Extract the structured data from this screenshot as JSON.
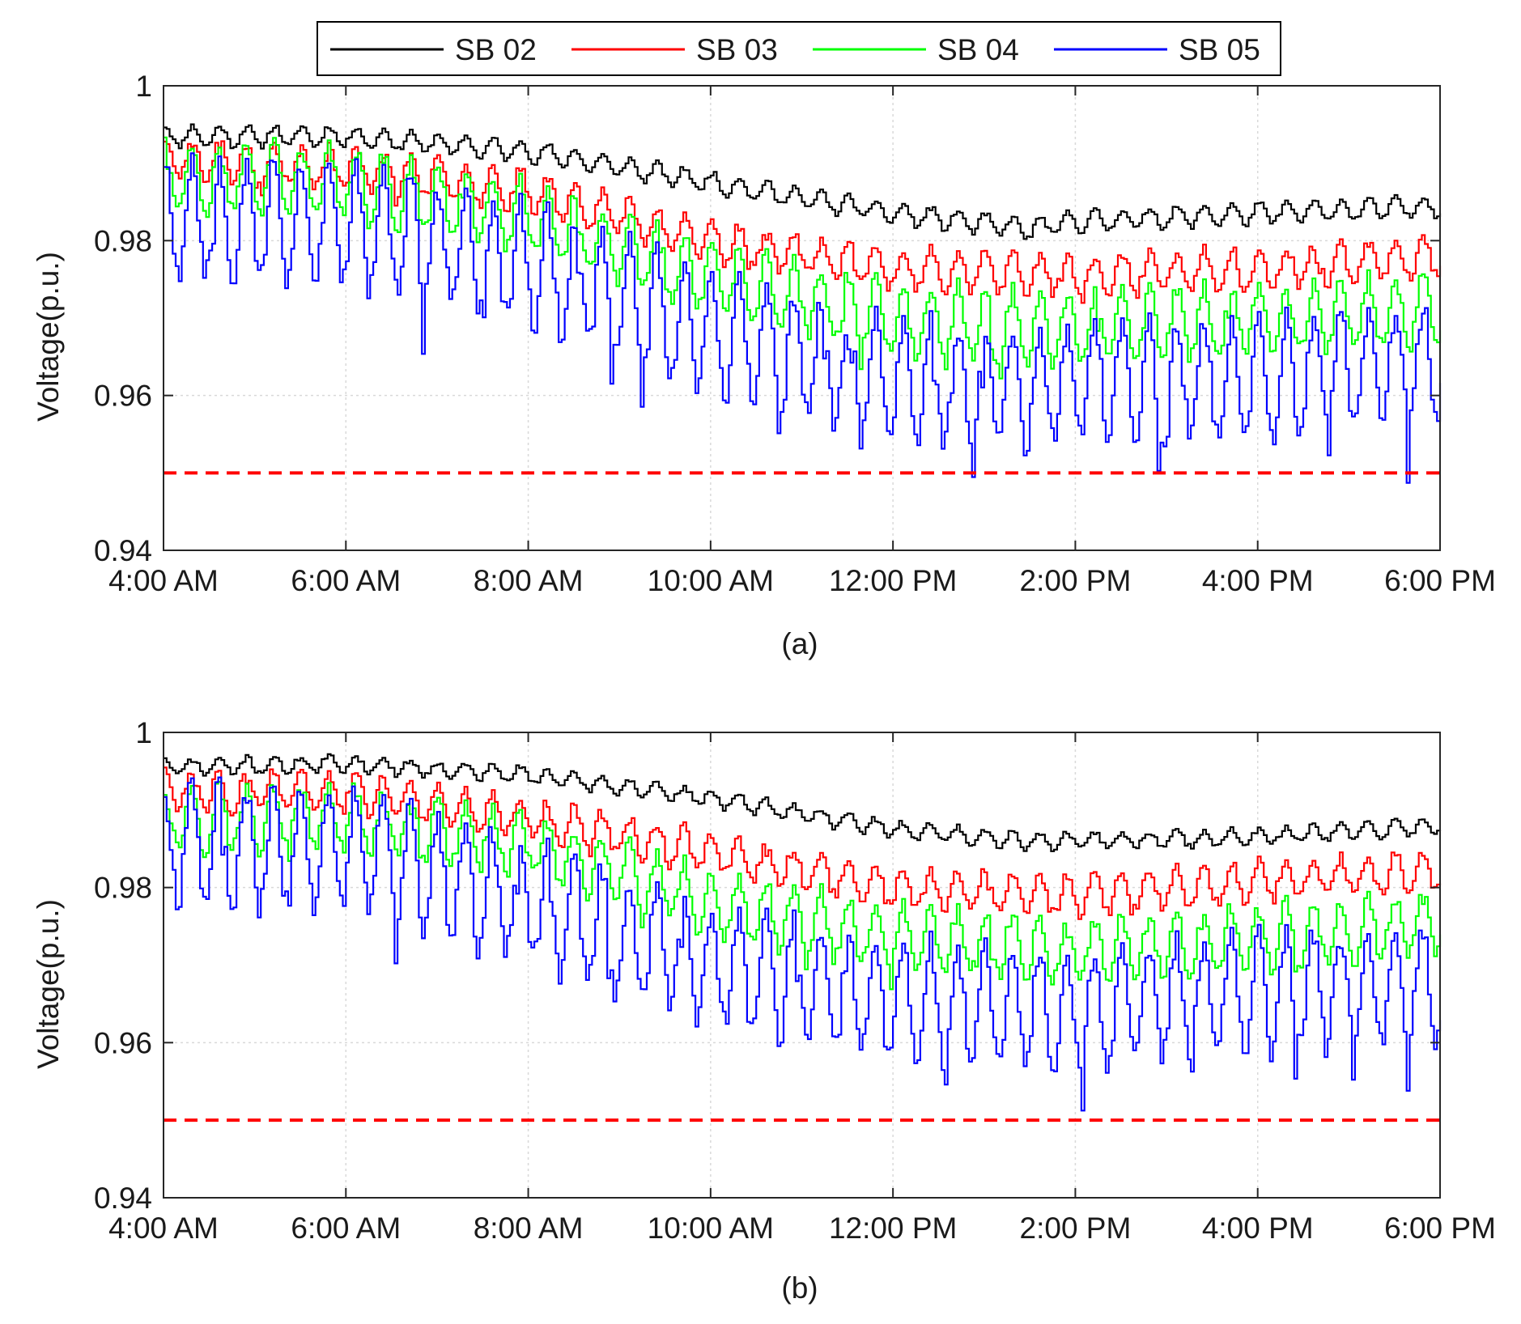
{
  "legend": {
    "entries": [
      {
        "label": "SB 02",
        "color": "#000000"
      },
      {
        "label": "SB 03",
        "color": "#ff0000"
      },
      {
        "label": "SB 04",
        "color": "#00ff00"
      },
      {
        "label": "SB 05",
        "color": "#0000ff"
      }
    ]
  },
  "chart_data": [
    {
      "type": "line",
      "caption": "(a)",
      "ylabel": "Voltage(p.u.)",
      "xlabel": "",
      "x_range_hours": [
        4,
        18
      ],
      "ylim": [
        0.94,
        1.0
      ],
      "x_ticks": [
        {
          "hour": 4,
          "label": "4:00 AM"
        },
        {
          "hour": 6,
          "label": "6:00 AM"
        },
        {
          "hour": 8,
          "label": "8:00 AM"
        },
        {
          "hour": 10,
          "label": "10:00 AM"
        },
        {
          "hour": 12,
          "label": "12:00 PM"
        },
        {
          "hour": 14,
          "label": "2:00 PM"
        },
        {
          "hour": 16,
          "label": "4:00 PM"
        },
        {
          "hour": 18,
          "label": "6:00 PM"
        }
      ],
      "y_ticks": [
        {
          "value": 0.94,
          "label": "0.94"
        },
        {
          "value": 0.96,
          "label": "0.96"
        },
        {
          "value": 0.98,
          "label": "0.98"
        },
        {
          "value": 1.0,
          "label": "1"
        }
      ],
      "grid": true,
      "reference_line": {
        "value": 0.95,
        "color": "#ff0000",
        "style": "dashed"
      },
      "series": [
        {
          "name": "SB 02",
          "color": "#000000",
          "trend": [
            [
              4,
              0.9935
            ],
            [
              6,
              0.9935
            ],
            [
              8,
              0.9915
            ],
            [
              10,
              0.9875
            ],
            [
              12,
              0.9835
            ],
            [
              13.5,
              0.9815
            ],
            [
              14,
              0.9825
            ],
            [
              16,
              0.9835
            ],
            [
              18,
              0.9845
            ]
          ],
          "amplitude": 0.0013,
          "period_min": 18,
          "noise": 0.0004,
          "spikes": 0,
          "seed": 11
        },
        {
          "name": "SB 03",
          "color": "#ff0000",
          "trend": [
            [
              4,
              0.9905
            ],
            [
              6,
              0.9895
            ],
            [
              8,
              0.9865
            ],
            [
              10,
              0.98
            ],
            [
              12,
              0.9765
            ],
            [
              14,
              0.9755
            ],
            [
              16,
              0.9765
            ],
            [
              18,
              0.978
            ]
          ],
          "amplitude": 0.0025,
          "period_min": 18,
          "noise": 0.0008,
          "spikes": 0.001,
          "seed": 23
        },
        {
          "name": "SB 04",
          "color": "#00ff00",
          "trend": [
            [
              4,
              0.9885
            ],
            [
              6,
              0.9875
            ],
            [
              8,
              0.983
            ],
            [
              10,
              0.975
            ],
            [
              12,
              0.97
            ],
            [
              14,
              0.9685
            ],
            [
              16,
              0.97
            ],
            [
              18,
              0.971
            ]
          ],
          "amplitude": 0.0045,
          "period_min": 18,
          "noise": 0.0012,
          "spikes": 0.002,
          "seed": 37
        },
        {
          "name": "SB 05",
          "color": "#0000ff",
          "trend": [
            [
              4,
              0.9835
            ],
            [
              6,
              0.982
            ],
            [
              8,
              0.977
            ],
            [
              10,
              0.968
            ],
            [
              12,
              0.962
            ],
            [
              13.5,
              0.961
            ],
            [
              14,
              0.962
            ],
            [
              16,
              0.962
            ],
            [
              18,
              0.9645
            ]
          ],
          "amplitude": 0.0075,
          "period_min": 18,
          "noise": 0.0018,
          "spikes": 0.005,
          "seed": 53
        }
      ]
    },
    {
      "type": "line",
      "caption": "(b)",
      "ylabel": "Voltage(p.u.)",
      "xlabel": "",
      "x_range_hours": [
        4,
        18
      ],
      "ylim": [
        0.94,
        1.0
      ],
      "x_ticks": [
        {
          "hour": 4,
          "label": "4:00 AM"
        },
        {
          "hour": 6,
          "label": "6:00 AM"
        },
        {
          "hour": 8,
          "label": "8:00 AM"
        },
        {
          "hour": 10,
          "label": "10:00 AM"
        },
        {
          "hour": 12,
          "label": "12:00 PM"
        },
        {
          "hour": 14,
          "label": "2:00 PM"
        },
        {
          "hour": 16,
          "label": "4:00 PM"
        },
        {
          "hour": 18,
          "label": "6:00 PM"
        }
      ],
      "y_ticks": [
        {
          "value": 0.94,
          "label": "0.94"
        },
        {
          "value": 0.96,
          "label": "0.96"
        },
        {
          "value": 0.98,
          "label": "0.98"
        },
        {
          "value": 1.0,
          "label": "1"
        }
      ],
      "grid": true,
      "reference_line": {
        "value": 0.95,
        "color": "#ff0000",
        "style": "dashed"
      },
      "series": [
        {
          "name": "SB 02",
          "color": "#000000",
          "trend": [
            [
              4,
              0.9955
            ],
            [
              6,
              0.996
            ],
            [
              8,
              0.9945
            ],
            [
              10,
              0.9915
            ],
            [
              12,
              0.9875
            ],
            [
              13.5,
              0.986
            ],
            [
              14,
              0.986
            ],
            [
              16,
              0.9865
            ],
            [
              18,
              0.988
            ]
          ],
          "amplitude": 0.001,
          "period_min": 18,
          "noise": 0.0004,
          "spikes": 0,
          "seed": 71
        },
        {
          "name": "SB 03",
          "color": "#ff0000",
          "trend": [
            [
              4,
              0.9925
            ],
            [
              6,
              0.9925
            ],
            [
              8,
              0.989
            ],
            [
              10,
              0.9845
            ],
            [
              12,
              0.98
            ],
            [
              14,
              0.979
            ],
            [
              16,
              0.981
            ],
            [
              18,
              0.982
            ]
          ],
          "amplitude": 0.0025,
          "period_min": 18,
          "noise": 0.0008,
          "spikes": 0.001,
          "seed": 83
        },
        {
          "name": "SB 04",
          "color": "#00ff00",
          "trend": [
            [
              4,
              0.989
            ],
            [
              6,
              0.989
            ],
            [
              8,
              0.9855
            ],
            [
              10,
              0.978
            ],
            [
              12,
              0.9735
            ],
            [
              14,
              0.972
            ],
            [
              16,
              0.9735
            ],
            [
              18,
              0.9755
            ]
          ],
          "amplitude": 0.004,
          "period_min": 18,
          "noise": 0.0012,
          "spikes": 0.0015,
          "seed": 97
        },
        {
          "name": "SB 05",
          "color": "#0000ff",
          "trend": [
            [
              4,
              0.9855
            ],
            [
              6,
              0.985
            ],
            [
              8,
              0.978
            ],
            [
              10,
              0.97
            ],
            [
              12,
              0.9655
            ],
            [
              14,
              0.964
            ],
            [
              16,
              0.9665
            ],
            [
              18,
              0.968
            ]
          ],
          "amplitude": 0.0075,
          "period_min": 18,
          "noise": 0.0018,
          "spikes": 0.004,
          "seed": 109
        }
      ]
    }
  ]
}
